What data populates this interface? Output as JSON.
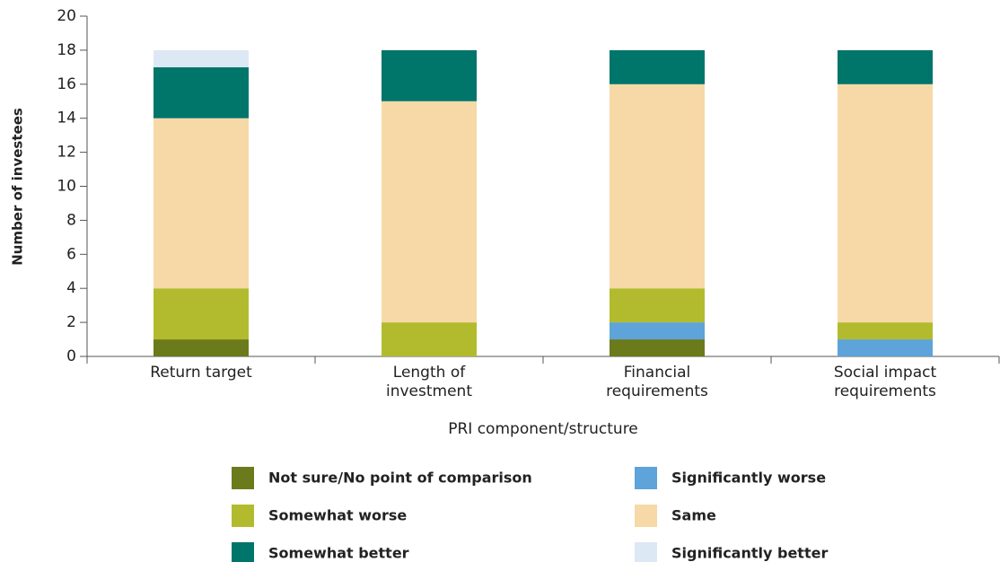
{
  "chart_data": {
    "type": "stacked_bar",
    "categories": [
      "Return target",
      "Length of investment",
      "Financial requirements",
      "Social impact requirements"
    ],
    "series": [
      {
        "name": "Not sure/No point of comparison",
        "color": "#6b7a1a",
        "values": [
          1,
          0,
          1,
          0
        ]
      },
      {
        "name": "Significantly worse",
        "color": "#5ea3d9",
        "values": [
          0,
          0,
          1,
          1
        ]
      },
      {
        "name": "Somewhat worse",
        "color": "#b2bb2e",
        "values": [
          3,
          2,
          2,
          1
        ]
      },
      {
        "name": "Same",
        "color": "#f6d9a6",
        "values": [
          10,
          13,
          12,
          14
        ]
      },
      {
        "name": "Somewhat better",
        "color": "#00756a",
        "values": [
          3,
          3,
          2,
          2
        ]
      },
      {
        "name": "Significantly better",
        "color": "#dde8f5",
        "values": [
          1,
          0,
          0,
          0
        ]
      }
    ],
    "x_label": "PRI component/structure",
    "y_label": "Number of investees",
    "ylim": [
      0,
      20
    ],
    "yticks": [
      0,
      2,
      4,
      6,
      8,
      10,
      12,
      14,
      16,
      18,
      20
    ],
    "legend": "bottom"
  }
}
